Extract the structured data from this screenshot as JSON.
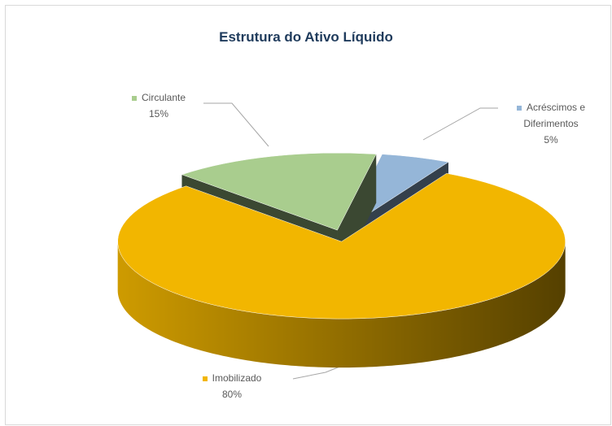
{
  "chart_data": {
    "type": "pie",
    "title": "Estrutura do Ativo Líquido",
    "categories": [
      "Circulante",
      "Acréscimos e Diferimentos",
      "Imobilizado"
    ],
    "values": [
      15,
      5,
      80
    ],
    "value_labels": [
      "15%",
      "5%",
      "80%"
    ],
    "colors": [
      "#a9cd8e",
      "#95b6d8",
      "#f2b600"
    ]
  }
}
